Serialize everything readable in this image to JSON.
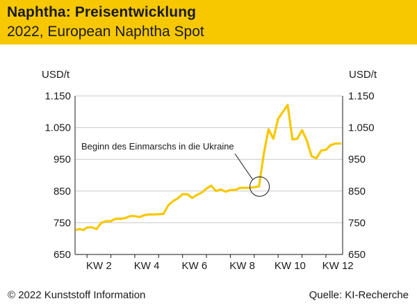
{
  "header": {
    "title": "Naphtha: Preisentwicklung",
    "subtitle": "2022, European Naphtha Spot"
  },
  "footer": {
    "copyright": "© 2022 Kunststoff Information",
    "source": "Quelle: KI-Recherche"
  },
  "colors": {
    "brand_yellow": "#f7c800",
    "line": "#f7c800",
    "grid": "#c8c8c8",
    "axis": "#1a1a1a"
  },
  "chart_data": {
    "type": "line",
    "title": "Naphtha: Preisentwicklung",
    "subtitle": "2022, European Naphtha Spot",
    "ylabel_left": "USD/t",
    "ylabel_right": "USD/t",
    "ylim": [
      650,
      1150
    ],
    "yticks": [
      650,
      750,
      850,
      950,
      1050,
      1150
    ],
    "ytick_labels": [
      "650",
      "750",
      "850",
      "950",
      "1.050",
      "1.150"
    ],
    "xlim": [
      1,
      12.2
    ],
    "xticks": [
      2,
      4,
      6,
      8,
      10,
      12
    ],
    "xtick_labels": [
      "KW 2",
      "KW 4",
      "KW 6",
      "KW 8",
      "KW 10",
      "KW 12"
    ],
    "grid": true,
    "series": [
      {
        "name": "European Naphtha Spot",
        "x": [
          1.05,
          1.2,
          1.35,
          1.5,
          1.7,
          1.9,
          2.1,
          2.3,
          2.5,
          2.7,
          2.9,
          3.1,
          3.3,
          3.5,
          3.7,
          3.9,
          4.1,
          4.3,
          4.5,
          4.7,
          4.9,
          5.1,
          5.3,
          5.5,
          5.7,
          5.9,
          6.1,
          6.3,
          6.5,
          6.7,
          6.9,
          7.1,
          7.3,
          7.5,
          7.7,
          7.9,
          8.1,
          8.3,
          8.5,
          8.7,
          8.9,
          9.1,
          9.3,
          9.5,
          9.7,
          9.9,
          10.1,
          10.3,
          10.5,
          10.7,
          10.9,
          11.1,
          11.3,
          11.5,
          11.7,
          11.9,
          12.1
        ],
        "values": [
          728,
          730,
          727,
          735,
          736,
          730,
          750,
          755,
          755,
          763,
          762,
          765,
          771,
          771,
          768,
          774,
          776,
          776,
          777,
          778,
          805,
          818,
          827,
          840,
          840,
          828,
          838,
          845,
          858,
          867,
          850,
          855,
          848,
          853,
          853,
          860,
          860,
          860,
          862,
          865,
          968,
          1045,
          1015,
          1078,
          1100,
          1122,
          1013,
          1015,
          1042,
          1010,
          960,
          953,
          978,
          980,
          995,
          1000,
          1000
        ]
      }
    ],
    "annotations": [
      {
        "text": "Beginn des Einmarschs in die Ukraine",
        "x": 8.9,
        "y": 862
      }
    ]
  }
}
